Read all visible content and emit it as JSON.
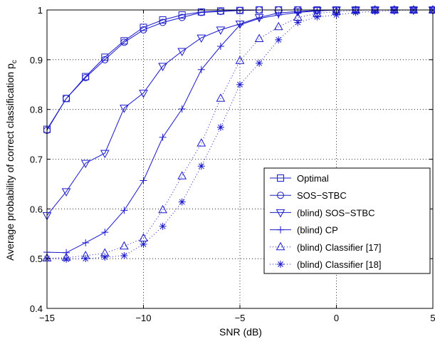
{
  "chart_data": {
    "type": "line",
    "title": "",
    "xlabel": "SNR (dB)",
    "ylabel": "Average probability of correct classification p",
    "ylabel_subscript": "c",
    "xlim": [
      -15,
      5
    ],
    "ylim": [
      0.4,
      1
    ],
    "xticks": [
      -15,
      -10,
      -5,
      0,
      5
    ],
    "yticks": [
      0.4,
      0.5,
      0.6,
      0.7,
      0.8,
      0.9,
      1
    ],
    "xtick_labels": [
      "−15",
      "−10",
      "−5",
      "0",
      "5"
    ],
    "ytick_labels": [
      "0.4",
      "0.5",
      "0.6",
      "0.7",
      "0.8",
      "0.9",
      "1"
    ],
    "grid": true,
    "legend_position": "lower-right",
    "x": [
      -15,
      -14,
      -13,
      -12,
      -11,
      -10,
      -9,
      -8,
      -7,
      -6,
      -5,
      -4,
      -3,
      -2,
      -1,
      0,
      1,
      2,
      3,
      4,
      5
    ],
    "series": [
      {
        "name": "Optimal",
        "marker": "square",
        "line": "solid",
        "values": [
          0.76,
          0.822,
          0.866,
          0.905,
          0.938,
          0.965,
          0.98,
          0.99,
          0.996,
          0.998,
          0.999,
          1.0,
          1.0,
          1.0,
          1.0,
          1.0,
          1.0,
          1.0,
          1.0,
          1.0,
          1.0
        ]
      },
      {
        "name": "SOS−STBC",
        "marker": "circle",
        "line": "solid",
        "values": [
          0.758,
          0.822,
          0.864,
          0.9,
          0.935,
          0.96,
          0.975,
          0.985,
          0.995,
          0.997,
          0.999,
          1.0,
          1.0,
          1.0,
          1.0,
          1.0,
          1.0,
          1.0,
          1.0,
          1.0,
          1.0
        ]
      },
      {
        "name": "(blind) SOS−STBC",
        "marker": "triangle-down",
        "line": "solid",
        "values": [
          0.587,
          0.635,
          0.692,
          0.712,
          0.803,
          0.833,
          0.887,
          0.917,
          0.944,
          0.96,
          0.972,
          0.985,
          0.994,
          0.997,
          0.999,
          1.0,
          1.0,
          1.0,
          1.0,
          1.0,
          1.0
        ]
      },
      {
        "name": "(blind) CP",
        "marker": "plus",
        "line": "solid",
        "values": [
          0.513,
          0.512,
          0.532,
          0.553,
          0.597,
          0.657,
          0.744,
          0.801,
          0.88,
          0.927,
          0.97,
          0.983,
          0.99,
          0.995,
          0.998,
          1.0,
          1.0,
          1.0,
          1.0,
          1.0,
          1.0
        ]
      },
      {
        "name": "(blind) Classifier [17]",
        "marker": "triangle-up",
        "line": "dotted",
        "values": [
          0.501,
          0.502,
          0.506,
          0.511,
          0.525,
          0.541,
          0.598,
          0.666,
          0.732,
          0.822,
          0.898,
          0.942,
          0.966,
          0.985,
          0.993,
          0.997,
          0.999,
          1.0,
          1.0,
          1.0,
          1.0
        ]
      },
      {
        "name": "(blind) Classifier [18]",
        "marker": "star",
        "line": "dotted",
        "values": [
          0.5,
          0.499,
          0.5,
          0.503,
          0.506,
          0.529,
          0.565,
          0.614,
          0.686,
          0.764,
          0.85,
          0.893,
          0.94,
          0.975,
          0.986,
          0.99,
          0.995,
          0.997,
          0.999,
          1.0,
          1.0
        ]
      }
    ]
  },
  "colors": {
    "series": "#1a1acc",
    "axis": "#000000",
    "grid": "#000000",
    "background": "#ffffff"
  }
}
